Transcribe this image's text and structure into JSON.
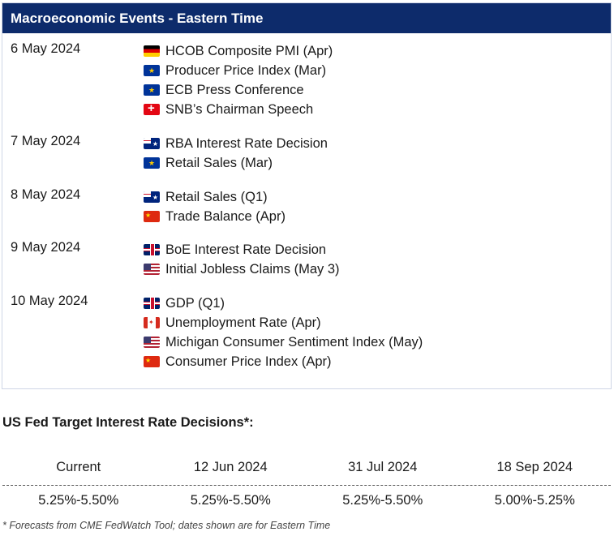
{
  "events": {
    "title": "Macroeconomic Events - Eastern Time",
    "groups": [
      {
        "date": "6 May 2024",
        "items": [
          {
            "flag": "germany-flag-icon",
            "label": "HCOB Composite PMI (Apr)"
          },
          {
            "flag": "eu-flag-icon",
            "label": "Producer Price Index (Mar)"
          },
          {
            "flag": "eu-flag-icon",
            "label": "ECB Press Conference"
          },
          {
            "flag": "switzerland-flag-icon",
            "label": "SNB’s Chairman Speech"
          }
        ]
      },
      {
        "date": "7 May 2024",
        "items": [
          {
            "flag": "australia-flag-icon",
            "label": "RBA Interest Rate Decision"
          },
          {
            "flag": "eu-flag-icon",
            "label": "Retail Sales (Mar)"
          }
        ]
      },
      {
        "date": "8 May 2024",
        "items": [
          {
            "flag": "australia-flag-icon",
            "label": "Retail Sales (Q1)"
          },
          {
            "flag": "china-flag-icon",
            "label": "Trade Balance (Apr)"
          }
        ]
      },
      {
        "date": "9 May 2024",
        "items": [
          {
            "flag": "uk-flag-icon",
            "label": "BoE Interest Rate Decision"
          },
          {
            "flag": "us-flag-icon",
            "label": "Initial Jobless Claims (May 3)"
          }
        ]
      },
      {
        "date": "10 May 2024",
        "items": [
          {
            "flag": "uk-flag-icon",
            "label": "GDP (Q1)"
          },
          {
            "flag": "canada-flag-icon",
            "label": "Unemployment Rate (Apr)"
          },
          {
            "flag": "us-flag-icon",
            "label": "Michigan Consumer Sentiment Index (May)"
          },
          {
            "flag": "china-flag-icon",
            "label": "Consumer Price Index (Apr)"
          }
        ]
      }
    ]
  },
  "fed": {
    "title": "US Fed Target Interest Rate Decisions*:",
    "headers": [
      "Current",
      "12 Jun 2024",
      "31 Jul 2024",
      "18 Sep 2024"
    ],
    "values": [
      "5.25%-5.50%",
      "5.25%-5.50%",
      "5.25%-5.50%",
      "5.00%-5.25%"
    ],
    "footnote": "* Forecasts from CME FedWatch Tool; dates shown are for Eastern Time"
  },
  "colors": {
    "header_bg": "#0d2b6b",
    "border": "#cfd6e6"
  }
}
